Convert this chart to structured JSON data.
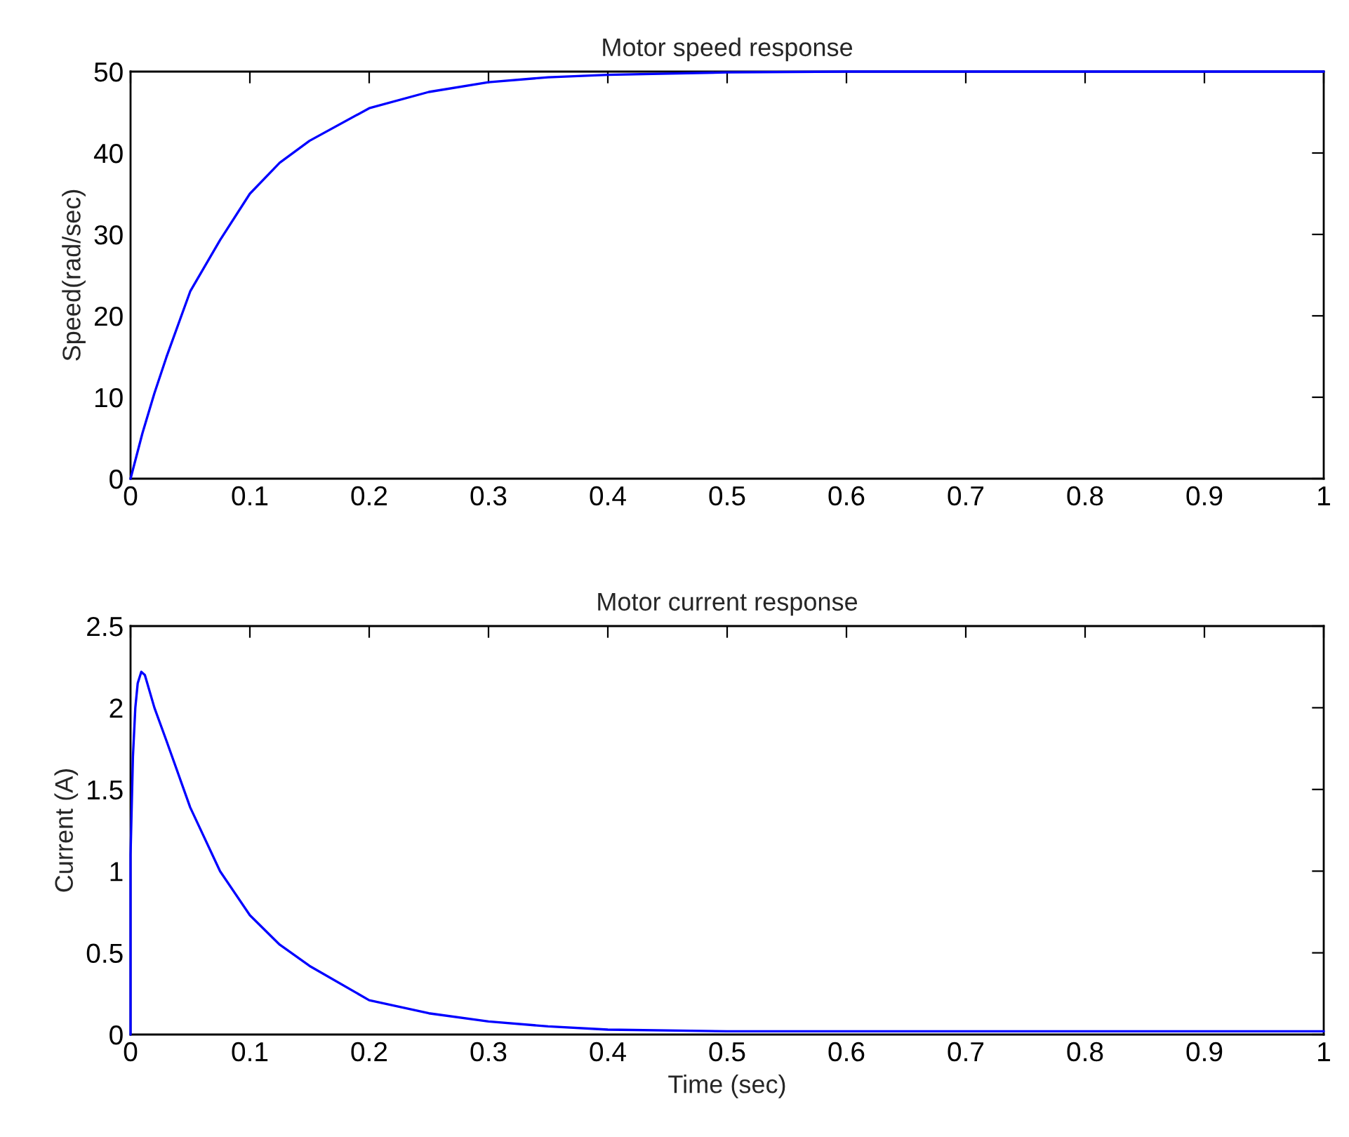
{
  "chart_data": [
    {
      "type": "line",
      "title": "Motor speed response",
      "ylabel": "Speed(rad/sec)",
      "xlim": [
        0,
        1
      ],
      "xticks": [
        0,
        0.1,
        0.2,
        0.3,
        0.4,
        0.5,
        0.6,
        0.7,
        0.8,
        0.9,
        1
      ],
      "ylim": [
        0,
        50
      ],
      "yticks": [
        0,
        10,
        20,
        30,
        40,
        50
      ],
      "grid": false,
      "series": [
        {
          "color": "#0000ff",
          "x": [
            0,
            0.01,
            0.02,
            0.03,
            0.05,
            0.075,
            0.1,
            0.125,
            0.15,
            0.2,
            0.25,
            0.3,
            0.35,
            0.4,
            0.5,
            0.6,
            0.8,
            1.0
          ],
          "values": [
            0,
            5.6,
            10.5,
            14.9,
            23,
            29.3,
            35,
            38.8,
            41.5,
            45.5,
            47.5,
            48.7,
            49.3,
            49.6,
            49.9,
            50,
            50,
            50
          ]
        }
      ]
    },
    {
      "type": "line",
      "title": "Motor current response",
      "xlabel": "Time (sec)",
      "ylabel": "Current (A)",
      "xlim": [
        0,
        1
      ],
      "xticks": [
        0,
        0.1,
        0.2,
        0.3,
        0.4,
        0.5,
        0.6,
        0.7,
        0.8,
        0.9,
        1
      ],
      "ylim": [
        0,
        2.5
      ],
      "yticks": [
        0,
        0.5,
        1,
        1.5,
        2,
        2.5
      ],
      "grid": false,
      "series": [
        {
          "color": "#0000ff",
          "x": [
            0,
            0,
            0.002,
            0.004,
            0.006,
            0.009,
            0.012,
            0.02,
            0.03,
            0.05,
            0.075,
            0.1,
            0.125,
            0.15,
            0.2,
            0.25,
            0.3,
            0.35,
            0.4,
            0.5,
            0.7,
            1.0
          ],
          "values": [
            0,
            1.1,
            1.7,
            2.0,
            2.15,
            2.22,
            2.2,
            2.0,
            1.8,
            1.39,
            1.0,
            0.73,
            0.55,
            0.42,
            0.21,
            0.13,
            0.08,
            0.05,
            0.03,
            0.02,
            0.02,
            0.02
          ]
        }
      ]
    }
  ]
}
